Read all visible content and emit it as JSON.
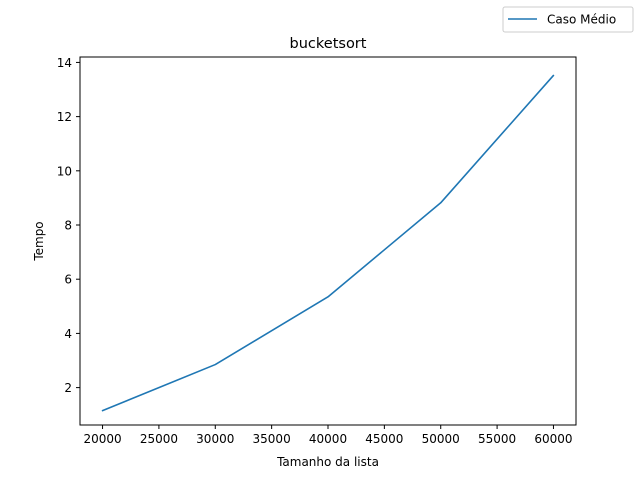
{
  "chart_data": {
    "type": "line",
    "title": "bucketsort",
    "xlabel": "Tamanho da lista",
    "ylabel": "Tempo",
    "xlim": [
      18000,
      62000
    ],
    "ylim": [
      0.62,
      14.2
    ],
    "xticks": [
      20000,
      25000,
      30000,
      35000,
      40000,
      45000,
      50000,
      55000,
      60000
    ],
    "yticks": [
      2,
      4,
      6,
      8,
      10,
      12,
      14
    ],
    "grid": false,
    "legend_position": "top-right",
    "series": [
      {
        "name": "Caso Médio",
        "color": "#1f77b4",
        "x": [
          20000,
          30000,
          40000,
          50000,
          60000
        ],
        "y": [
          1.15,
          2.85,
          5.35,
          8.82,
          13.52
        ]
      }
    ]
  }
}
